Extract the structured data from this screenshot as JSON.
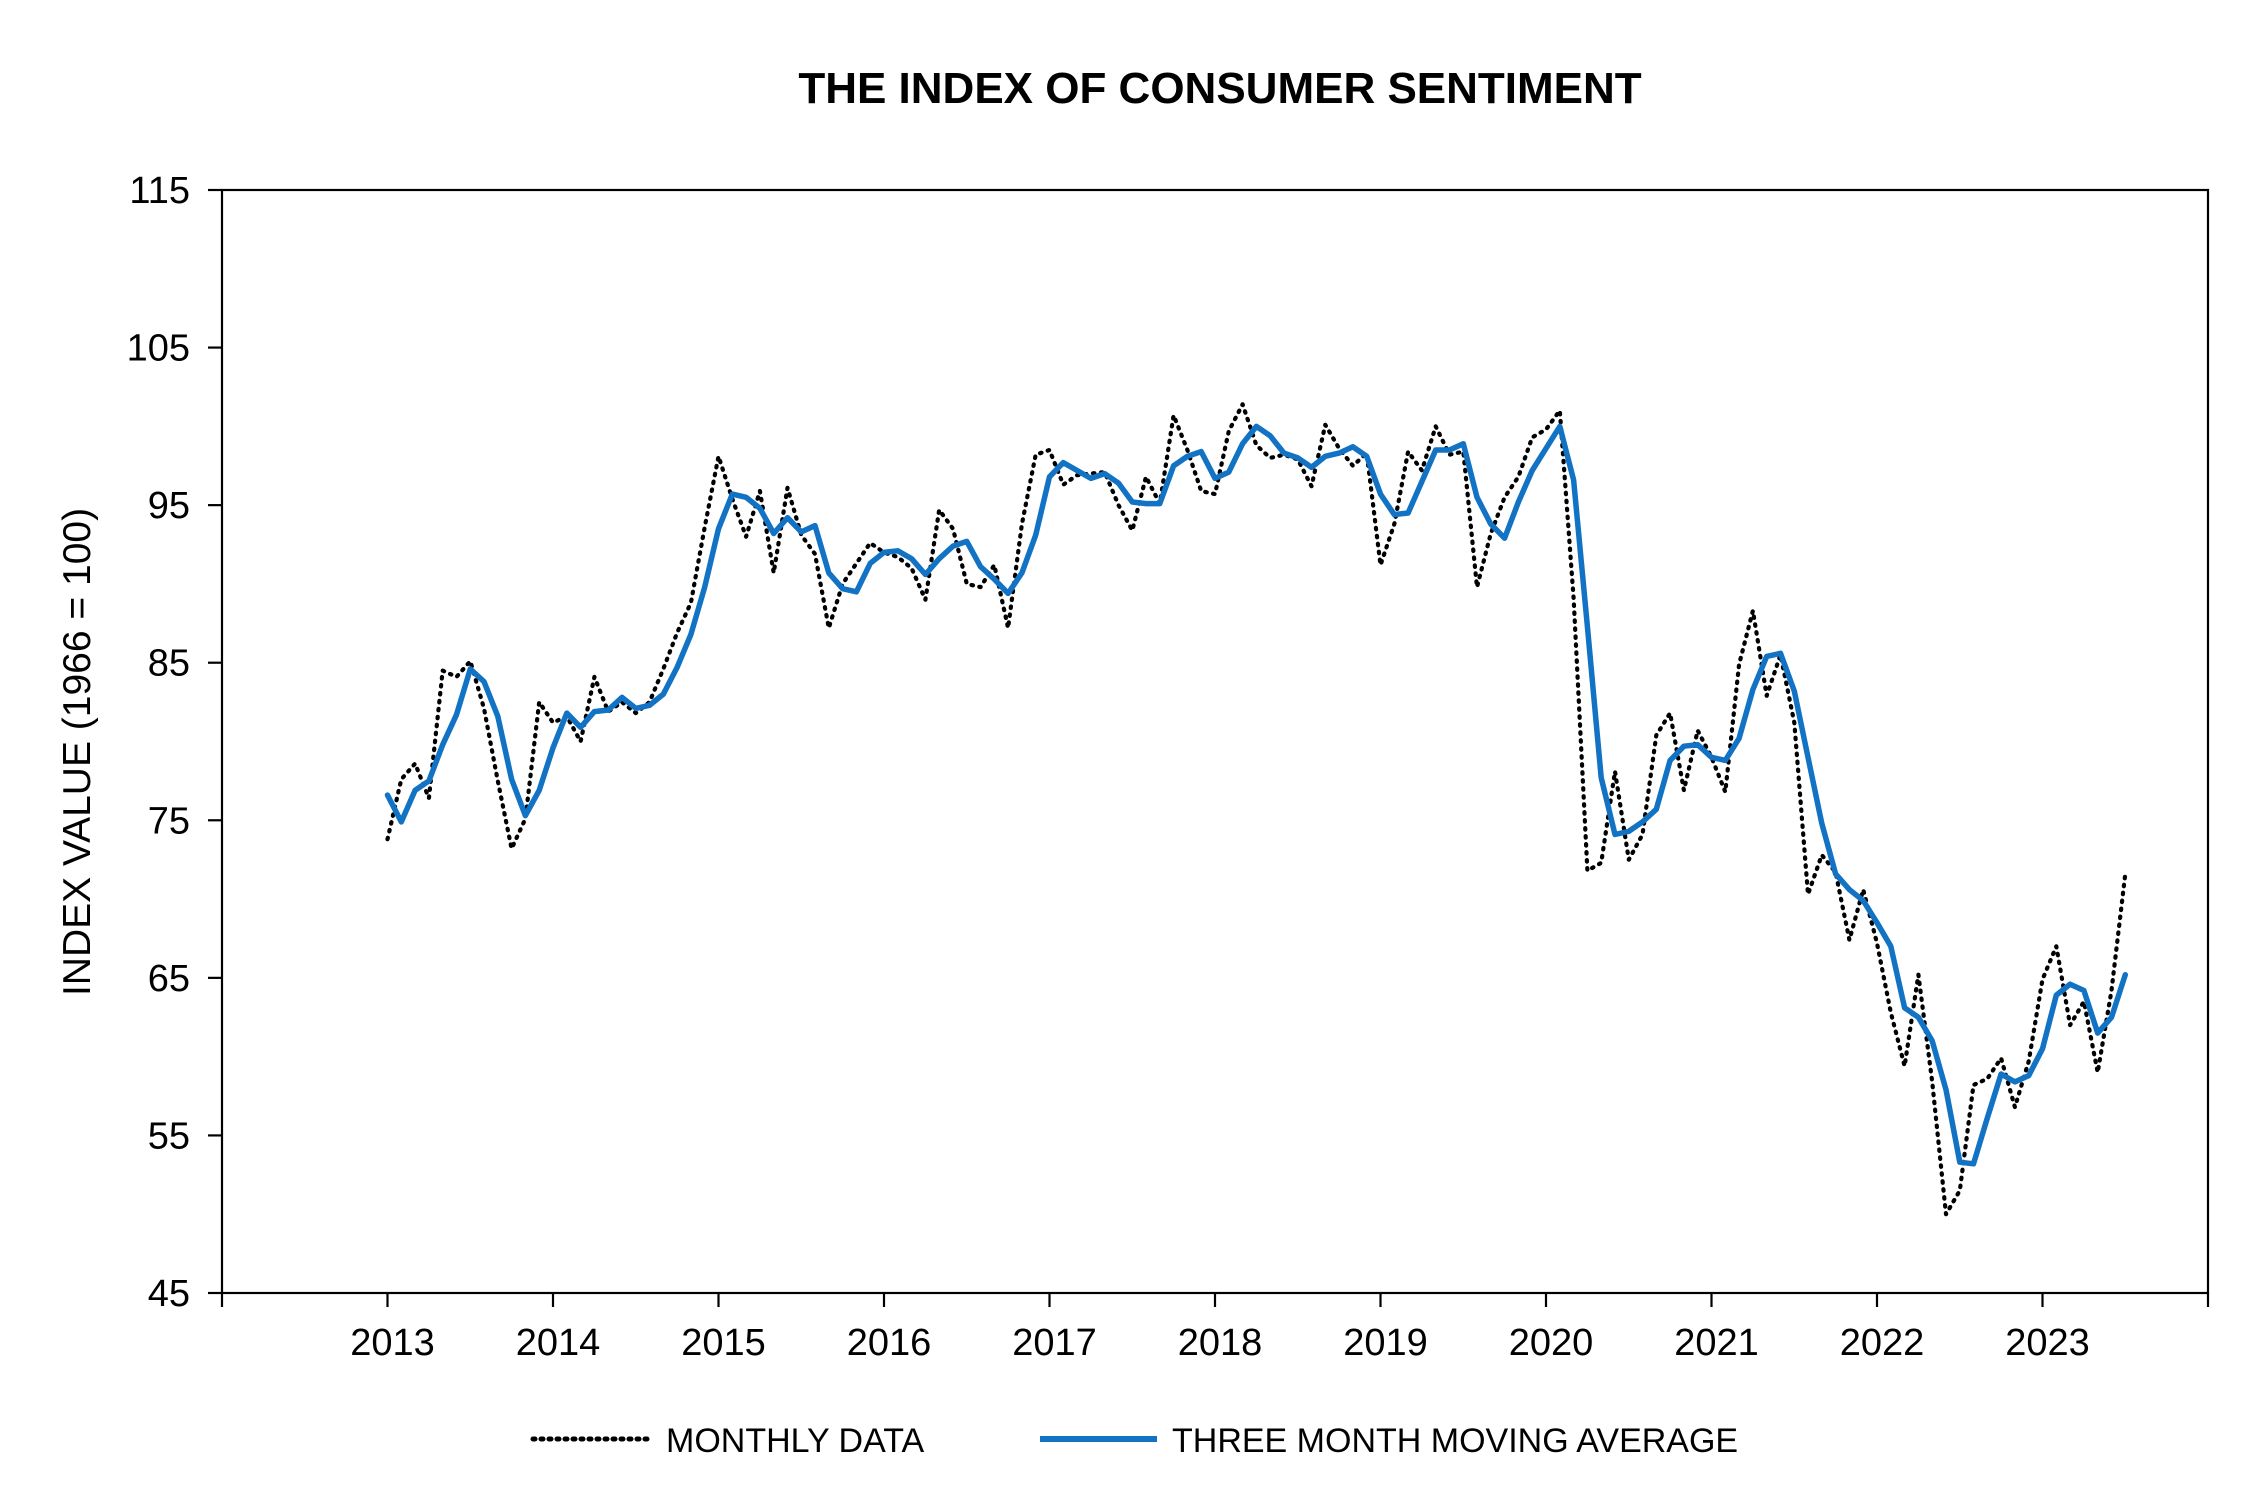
{
  "chart_data": {
    "type": "line",
    "title": "THE INDEX OF CONSUMER SENTIMENT",
    "ylabel": "INDEX VALUE (1966 = 100)",
    "xlabel": "",
    "ylim": [
      45,
      115
    ],
    "yticks": [
      "45",
      "55",
      "65",
      "75",
      "85",
      "95",
      "105",
      "115"
    ],
    "xlim": [
      2012,
      2024
    ],
    "xticks": [
      "2013",
      "2014",
      "2015",
      "2016",
      "2017",
      "2018",
      "2019",
      "2020",
      "2021",
      "2022",
      "2023"
    ],
    "grid": false,
    "legend_position": "bottom",
    "colors": {
      "monthly": "#000000",
      "moving_average": "#1272c4"
    },
    "series": [
      {
        "name": "MONTHLY DATA",
        "style": "dotted",
        "x_start": "2013-01",
        "frequency": "monthly",
        "values": [
          73.8,
          77.6,
          78.6,
          76.4,
          84.5,
          84.1,
          85.1,
          82.1,
          77.5,
          73.2,
          75.1,
          82.5,
          81.2,
          81.6,
          80.0,
          84.1,
          81.9,
          82.5,
          81.8,
          82.5,
          84.6,
          86.9,
          88.8,
          93.6,
          98.1,
          95.4,
          93.0,
          95.9,
          90.7,
          96.1,
          93.1,
          91.9,
          87.2,
          90.0,
          91.3,
          92.6,
          92.0,
          91.7,
          91.0,
          89.0,
          94.7,
          93.5,
          90.0,
          89.8,
          91.2,
          87.2,
          93.8,
          98.2,
          98.5,
          96.3,
          96.9,
          97.0,
          97.1,
          95.0,
          93.4,
          96.8,
          95.1,
          100.7,
          98.5,
          95.9,
          95.7,
          99.7,
          101.4,
          98.8,
          98.0,
          98.2,
          97.9,
          96.2,
          100.1,
          98.6,
          97.5,
          98.3,
          91.2,
          93.8,
          98.4,
          97.2,
          100.0,
          98.2,
          98.4,
          89.8,
          93.2,
          95.5,
          96.8,
          99.3,
          99.8,
          101.0,
          89.1,
          71.8,
          72.3,
          78.1,
          72.5,
          74.1,
          80.4,
          81.8,
          76.9,
          80.7,
          79.0,
          76.8,
          84.9,
          88.3,
          82.9,
          85.5,
          81.2,
          70.3,
          72.8,
          71.7,
          67.4,
          70.6,
          67.2,
          62.8,
          59.4,
          65.2,
          58.4,
          50.0,
          51.5,
          58.2,
          58.6,
          59.9,
          56.8,
          59.7,
          64.9,
          67.0,
          62.0,
          63.5,
          59.0,
          64.2,
          71.6
        ]
      },
      {
        "name": "THREE MONTH MOVING AVERAGE",
        "style": "solid",
        "x_start": "2013-01",
        "frequency": "monthly",
        "values": [
          76.6,
          74.9,
          76.9,
          77.5,
          79.8,
          81.7,
          84.6,
          83.8,
          81.6,
          77.6,
          75.3,
          76.9,
          79.6,
          81.8,
          80.9,
          81.9,
          82.0,
          82.8,
          82.1,
          82.3,
          83.0,
          84.7,
          86.8,
          89.8,
          93.5,
          95.7,
          95.5,
          94.8,
          93.2,
          94.2,
          93.3,
          93.7,
          90.7,
          89.7,
          89.5,
          91.3,
          92.0,
          92.1,
          91.6,
          90.6,
          91.6,
          92.4,
          92.7,
          91.1,
          90.3,
          89.4,
          90.7,
          93.1,
          96.8,
          97.7,
          97.2,
          96.7,
          97.0,
          96.4,
          95.2,
          95.1,
          95.1,
          97.5,
          98.1,
          98.4,
          96.7,
          97.1,
          98.9,
          100.0,
          99.4,
          98.3,
          98.0,
          97.4,
          98.1,
          98.3,
          98.7,
          98.1,
          95.7,
          94.4,
          94.5,
          96.5,
          98.5,
          98.5,
          98.9,
          95.5,
          93.8,
          92.9,
          95.2,
          97.2,
          98.6,
          100.0,
          96.6,
          87.3,
          77.7,
          74.1,
          74.3,
          74.9,
          75.7,
          78.8,
          79.7,
          79.8,
          79.0,
          78.8,
          80.2,
          83.3,
          85.4,
          85.6,
          83.2,
          79.0,
          74.8,
          71.6,
          70.6,
          69.9,
          68.5,
          67.0,
          63.1,
          62.5,
          61.0,
          57.9,
          53.3,
          53.2,
          56.1,
          58.9,
          58.4,
          58.8,
          60.5,
          63.9,
          64.6,
          64.2,
          61.5,
          62.5,
          65.2
        ]
      }
    ]
  }
}
